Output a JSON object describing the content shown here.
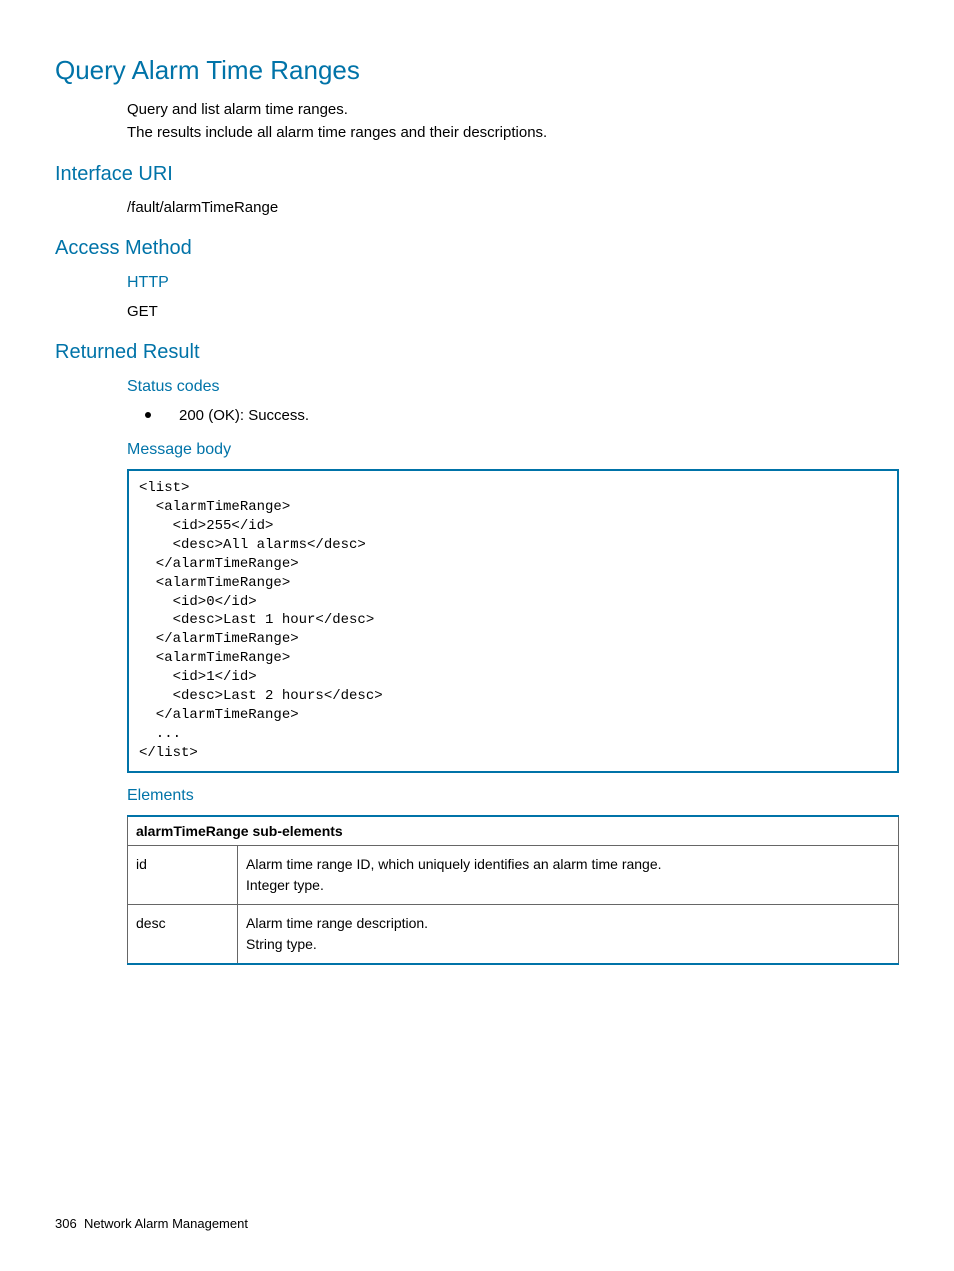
{
  "title": "Query Alarm Time Ranges",
  "intro": {
    "line1": "Query and list alarm time ranges.",
    "line2": "The results include all alarm time ranges and their descriptions."
  },
  "interface_uri": {
    "heading": "Interface URI",
    "value": "/fault/alarmTimeRange"
  },
  "access_method": {
    "heading": "Access Method",
    "protocol_label": "HTTP",
    "method": "GET"
  },
  "returned_result": {
    "heading": "Returned Result",
    "status_codes": {
      "heading": "Status codes",
      "item": "200 (OK): Success."
    },
    "message_body": {
      "heading": "Message body",
      "code": "<list>\n  <alarmTimeRange>\n    <id>255</id>\n    <desc>All alarms</desc>\n  </alarmTimeRange>\n  <alarmTimeRange>\n    <id>0</id>\n    <desc>Last 1 hour</desc>\n  </alarmTimeRange>\n  <alarmTimeRange>\n    <id>1</id>\n    <desc>Last 2 hours</desc>\n  </alarmTimeRange>\n  ...\n</list>"
    },
    "elements": {
      "heading": "Elements",
      "table_header": "alarmTimeRange sub-elements",
      "rows": [
        {
          "name": "id",
          "desc_line1": "Alarm time range ID, which uniquely identifies an alarm time range.",
          "desc_line2": "Integer type."
        },
        {
          "name": "desc",
          "desc_line1": "Alarm time range description.",
          "desc_line2": "String type."
        }
      ]
    }
  },
  "footer": {
    "page_number": "306",
    "section": "Network Alarm Management"
  },
  "colors": {
    "heading_color": "#0073a8",
    "border_color": "#0073a8",
    "text_color": "#000000",
    "background": "#ffffff"
  }
}
